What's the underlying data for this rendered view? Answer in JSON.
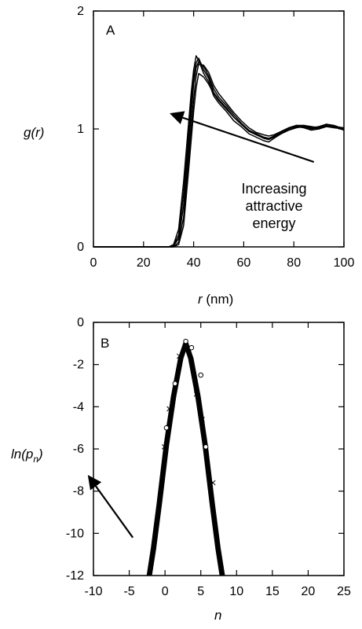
{
  "chart_data": [
    {
      "panel_label": "A",
      "type": "line",
      "xlabel_main": "r",
      "xlabel_unit": " (nm)",
      "ylabel": "g(r)",
      "xlim": [
        0,
        100
      ],
      "ylim": [
        0,
        2
      ],
      "xticks": [
        0,
        20,
        40,
        60,
        80,
        100
      ],
      "yticks": [
        0,
        1,
        2
      ],
      "grid": false,
      "legend": "none",
      "annotation": [
        "Increasing",
        "attractive",
        "energy"
      ],
      "arrow": {
        "from": [
          88,
          0.72
        ],
        "to": [
          35,
          1.1
        ],
        "direction": "toward upper-left"
      },
      "series": [
        {
          "x": [
            0,
            30,
            32,
            34,
            36,
            38,
            39,
            40,
            41,
            42,
            44,
            46,
            48,
            50,
            53,
            56,
            59,
            62,
            65,
            68,
            70,
            72,
            75,
            78,
            81,
            84,
            87,
            90,
            93,
            96,
            100
          ],
          "y": [
            0,
            0,
            0.02,
            0.15,
            0.55,
            1.05,
            1.3,
            1.5,
            1.62,
            1.58,
            1.47,
            1.4,
            1.28,
            1.22,
            1.15,
            1.07,
            1.02,
            0.96,
            0.93,
            0.9,
            0.89,
            0.92,
            0.96,
            0.99,
            1.02,
            1.01,
            0.99,
            1.0,
            1.03,
            1.02,
            0.99
          ]
        },
        {
          "x": [
            0,
            30,
            32,
            34,
            36,
            38,
            39,
            40,
            41,
            42,
            44,
            46,
            48,
            50,
            53,
            56,
            59,
            62,
            65,
            68,
            70,
            72,
            75,
            78,
            81,
            84,
            87,
            90,
            93,
            96,
            100
          ],
          "y": [
            0,
            0,
            0.01,
            0.1,
            0.45,
            0.95,
            1.22,
            1.44,
            1.56,
            1.6,
            1.5,
            1.43,
            1.31,
            1.25,
            1.18,
            1.1,
            1.04,
            0.98,
            0.95,
            0.92,
            0.91,
            0.93,
            0.97,
            1.0,
            1.03,
            1.02,
            1.0,
            1.01,
            1.04,
            1.03,
            1.0
          ]
        },
        {
          "x": [
            0,
            30,
            32,
            34,
            36,
            38,
            39,
            40,
            41,
            42,
            44,
            46,
            48,
            50,
            53,
            56,
            59,
            62,
            65,
            68,
            70,
            72,
            75,
            78,
            81,
            84,
            87,
            90,
            93,
            96,
            100
          ],
          "y": [
            0,
            0,
            0.01,
            0.07,
            0.35,
            0.85,
            1.12,
            1.38,
            1.52,
            1.57,
            1.53,
            1.45,
            1.34,
            1.27,
            1.2,
            1.12,
            1.05,
            0.99,
            0.96,
            0.93,
            0.92,
            0.94,
            0.98,
            1.01,
            1.03,
            1.03,
            1.01,
            1.02,
            1.04,
            1.02,
            1.0
          ]
        },
        {
          "x": [
            0,
            30,
            32,
            34,
            36,
            38,
            39,
            40,
            41,
            42,
            44,
            46,
            48,
            50,
            53,
            56,
            59,
            62,
            65,
            68,
            70,
            72,
            75,
            78,
            81,
            84,
            87,
            90,
            93,
            96,
            100
          ],
          "y": [
            0,
            0,
            0,
            0.04,
            0.25,
            0.75,
            1.0,
            1.25,
            1.45,
            1.55,
            1.54,
            1.48,
            1.37,
            1.3,
            1.22,
            1.14,
            1.07,
            1.01,
            0.97,
            0.95,
            0.94,
            0.95,
            0.98,
            1.01,
            1.02,
            1.03,
            1.02,
            1.01,
            1.03,
            1.02,
            1.01
          ]
        },
        {
          "x": [
            0,
            30,
            32,
            34,
            36,
            38,
            39,
            40,
            41,
            42,
            44,
            46,
            48,
            50,
            53,
            56,
            59,
            62,
            65,
            68,
            70,
            72,
            75,
            78,
            81,
            84,
            87,
            90,
            93,
            96,
            100
          ],
          "y": [
            0,
            0,
            0,
            0.02,
            0.18,
            0.65,
            0.9,
            1.15,
            1.35,
            1.47,
            1.44,
            1.38,
            1.3,
            1.24,
            1.17,
            1.1,
            1.04,
            0.99,
            0.95,
            0.93,
            0.92,
            0.93,
            0.96,
            0.99,
            1.01,
            1.02,
            1.01,
            1.0,
            1.02,
            1.01,
            1.0
          ]
        }
      ]
    },
    {
      "panel_label": "B",
      "type": "line",
      "xlabel": "n",
      "ylabel_main": "ln(p",
      "ylabel_sub": "n",
      "ylabel_tail": ")",
      "xlim": [
        -10,
        25
      ],
      "ylim": [
        -12,
        0
      ],
      "xticks": [
        -10,
        -5,
        0,
        5,
        10,
        15,
        20,
        25
      ],
      "yticks": [
        0,
        -2,
        -4,
        -6,
        -8,
        -10,
        -12
      ],
      "grid": false,
      "legend": "none",
      "arrow": {
        "from": [
          -4.5,
          -10.2
        ],
        "to": [
          -9.8,
          -7.7
        ],
        "direction": "toward upper-left"
      },
      "series": [
        {
          "x": [
            -2.4,
            -1.8,
            -1.0,
            0.0,
            1.0,
            2.0,
            2.7,
            3.4,
            4.4,
            5.4,
            6.4,
            7.2,
            7.8
          ],
          "y": [
            -12,
            -10.7,
            -8.6,
            -5.8,
            -3.5,
            -1.7,
            -1.0,
            -1.7,
            -3.5,
            -5.8,
            -8.6,
            -10.7,
            -12
          ]
        },
        {
          "x": [
            -2.2,
            -1.6,
            -0.8,
            0.2,
            1.2,
            2.2,
            2.9,
            3.6,
            4.6,
            5.6,
            6.6,
            7.4,
            8.0
          ],
          "y": [
            -12,
            -10.7,
            -8.6,
            -5.8,
            -3.5,
            -1.7,
            -1.0,
            -1.7,
            -3.5,
            -5.8,
            -8.6,
            -10.7,
            -12
          ]
        },
        {
          "x": [
            -2.0,
            -1.4,
            -0.6,
            0.4,
            1.4,
            2.4,
            3.1,
            3.8,
            4.8,
            5.8,
            6.8,
            7.6,
            8.2
          ],
          "y": [
            -12,
            -10.7,
            -8.6,
            -5.8,
            -3.5,
            -1.7,
            -1.0,
            -1.7,
            -3.5,
            -5.8,
            -8.6,
            -10.7,
            -12
          ]
        }
      ],
      "markers": [
        {
          "x": 2.9,
          "y": -0.9
        },
        {
          "x": 2.0,
          "y": -1.6
        },
        {
          "x": 1.4,
          "y": -2.9
        },
        {
          "x": 0.6,
          "y": -4.1
        },
        {
          "x": 0.2,
          "y": -5.0
        },
        {
          "x": -0.1,
          "y": -5.9
        },
        {
          "x": 5.0,
          "y": -2.5
        },
        {
          "x": 5.2,
          "y": -4.6
        },
        {
          "x": 5.7,
          "y": -5.9
        },
        {
          "x": 6.7,
          "y": -7.6
        },
        {
          "x": 3.7,
          "y": -1.2
        },
        {
          "x": 4.4,
          "y": -3.4
        }
      ]
    }
  ]
}
